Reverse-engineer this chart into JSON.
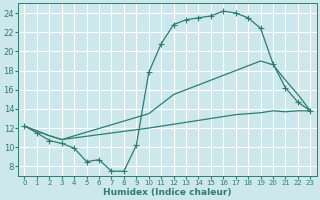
{
  "bg_color": "#cce8ec",
  "grid_color": "#ffffff",
  "line_color": "#2e7d6e",
  "xlabel": "Humidex (Indice chaleur)",
  "xlim": [
    -0.5,
    23.5
  ],
  "ylim": [
    7,
    25
  ],
  "yticks": [
    8,
    10,
    12,
    14,
    16,
    18,
    20,
    22,
    24
  ],
  "xticks": [
    0,
    1,
    2,
    3,
    4,
    5,
    6,
    7,
    8,
    9,
    10,
    11,
    12,
    13,
    14,
    15,
    16,
    17,
    18,
    19,
    20,
    21,
    22,
    23
  ],
  "curve1_x": [
    0,
    1,
    2,
    3,
    4,
    5,
    6,
    7,
    8,
    9,
    10,
    11,
    12,
    13,
    14,
    15,
    16,
    17,
    18,
    19,
    20,
    21,
    22,
    23
  ],
  "curve1_y": [
    12.2,
    11.5,
    10.7,
    10.4,
    9.9,
    8.5,
    8.7,
    7.5,
    7.5,
    10.2,
    17.8,
    20.8,
    22.8,
    23.3,
    23.5,
    23.7,
    24.2,
    24.0,
    23.5,
    22.4,
    18.7,
    16.2,
    14.7,
    13.8
  ],
  "curve2_x": [
    0,
    1,
    2,
    3,
    10,
    11,
    12,
    13,
    14,
    15,
    16,
    17,
    18,
    19,
    20,
    21,
    22,
    23
  ],
  "curve2_y": [
    12.2,
    11.7,
    11.2,
    10.8,
    13.5,
    14.5,
    15.5,
    16.0,
    16.5,
    17.0,
    17.5,
    18.0,
    18.5,
    19.0,
    18.6,
    17.0,
    15.5,
    13.8
  ],
  "curve3_x": [
    0,
    1,
    2,
    3,
    10,
    11,
    12,
    13,
    14,
    15,
    16,
    17,
    18,
    19,
    20,
    21,
    22,
    23
  ],
  "curve3_y": [
    12.2,
    11.7,
    11.2,
    10.8,
    12.0,
    12.2,
    12.4,
    12.6,
    12.8,
    13.0,
    13.2,
    13.4,
    13.5,
    13.6,
    13.8,
    13.7,
    13.8,
    13.8
  ]
}
